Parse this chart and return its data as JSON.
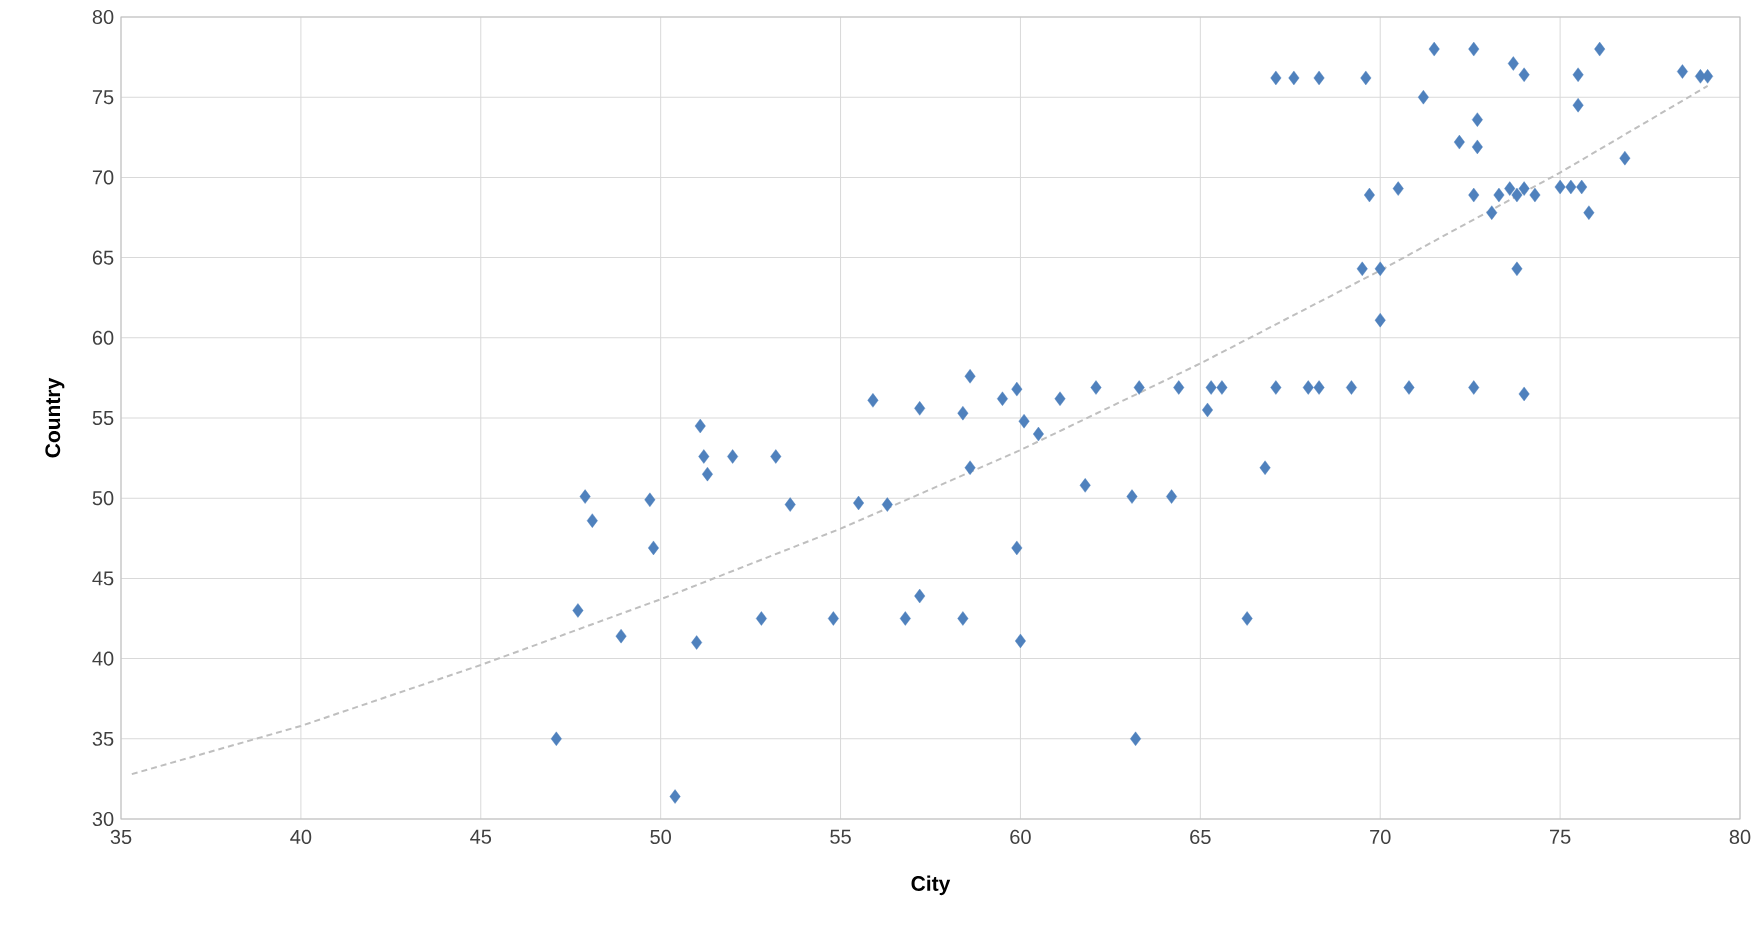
{
  "chart_data": {
    "type": "scatter",
    "xlabel": "City",
    "ylabel": "Country",
    "xlim": [
      35,
      80
    ],
    "ylim": [
      30,
      80
    ],
    "xticks": [
      35,
      40,
      45,
      50,
      55,
      60,
      65,
      70,
      75,
      80
    ],
    "yticks": [
      30,
      35,
      40,
      45,
      50,
      55,
      60,
      65,
      70,
      75,
      80
    ],
    "grid": true,
    "marker": "diamond",
    "series": [
      {
        "color": "#4f81bd",
        "x": [
          47.1,
          50.4,
          47.7,
          47.9,
          48.1,
          48.9,
          49.7,
          49.8,
          51.0,
          51.1,
          51.2,
          51.3,
          52.0,
          52.8,
          53.2,
          53.6,
          54.8,
          55.5,
          55.9,
          56.3,
          56.8,
          57.2,
          57.2,
          58.4,
          58.4,
          58.6,
          58.6,
          59.5,
          59.9,
          59.9,
          60.0,
          60.1,
          60.5,
          61.1,
          61.8,
          62.1,
          63.1,
          63.2,
          63.3,
          64.2,
          64.4,
          65.2,
          65.3,
          65.6,
          66.3,
          66.8,
          67.1,
          67.1,
          67.6,
          68.0,
          68.3,
          68.3,
          69.2,
          69.5,
          69.6,
          69.7,
          70.0,
          70.0,
          70.5,
          70.8,
          71.2,
          71.5,
          72.2,
          72.6,
          72.6,
          72.6,
          72.7,
          72.7,
          73.1,
          73.3,
          73.6,
          73.7,
          73.8,
          73.8,
          74.0,
          74.0,
          74.0,
          74.3,
          75.0,
          75.3,
          75.5,
          75.5,
          75.6,
          75.8,
          76.1,
          76.8,
          78.4,
          78.9,
          79.1
        ],
        "values": [
          35.0,
          31.4,
          43.0,
          50.1,
          48.6,
          41.4,
          49.9,
          46.9,
          41.0,
          54.5,
          52.6,
          51.5,
          52.6,
          42.5,
          52.6,
          49.6,
          42.5,
          49.7,
          56.1,
          49.6,
          42.5,
          43.9,
          55.6,
          55.3,
          42.5,
          51.9,
          57.6,
          56.2,
          56.8,
          46.9,
          41.1,
          54.8,
          54.0,
          56.2,
          50.8,
          56.9,
          50.1,
          35.0,
          56.9,
          50.1,
          56.9,
          55.5,
          56.9,
          56.9,
          42.5,
          51.9,
          56.9,
          76.2,
          76.2,
          56.9,
          56.9,
          76.2,
          56.9,
          64.3,
          76.2,
          68.9,
          64.3,
          61.1,
          69.3,
          56.9,
          75.0,
          78.0,
          72.2,
          78.0,
          68.9,
          56.9,
          71.9,
          73.6,
          67.8,
          68.9,
          69.3,
          77.1,
          68.9,
          64.3,
          76.4,
          69.3,
          56.5,
          68.9,
          69.4,
          69.4,
          76.4,
          74.5,
          69.4,
          67.8,
          78.0,
          71.2,
          76.6,
          76.3,
          76.3
        ]
      },
      {
        "type": "line",
        "color": "#bfbfbf",
        "line_style": "dashed",
        "marker": "none",
        "x": [
          35.3,
          40,
          45,
          50,
          55,
          60,
          65,
          70,
          75,
          79.1
        ],
        "values": [
          32.8,
          35.8,
          39.6,
          43.7,
          48.1,
          53.0,
          58.4,
          64.2,
          70.3,
          75.7
        ]
      }
    ]
  }
}
